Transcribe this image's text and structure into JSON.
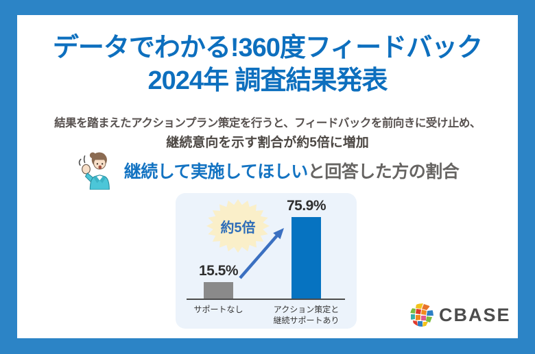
{
  "header": {
    "title_line1": "データでわかる!360度フィードバック",
    "title_line2": "2024年 調査結果発表",
    "subtitle_line1": "結果を踏まえたアクションプラン策定を行うと、フィードバックを前向きに受け止め、",
    "subtitle_highlight": "継続意向を示す割合が約5倍に増加"
  },
  "section_heading": {
    "blue_part": "継続して実施してほしい",
    "gray_part": "と回答した方の割合"
  },
  "chart_data": {
    "type": "bar",
    "categories": [
      "サポートなし",
      "アクション策定と\n継続サポートあり"
    ],
    "values": [
      15.5,
      75.9
    ],
    "value_labels": [
      "15.5%",
      "75.9%"
    ],
    "bar_colors": [
      "#8A8A8A",
      "#0673C1"
    ],
    "annotation": "約5倍",
    "ylim": [
      0,
      80
    ],
    "grid": false,
    "legend": false
  },
  "logo": {
    "text": "CBASE"
  },
  "colors": {
    "frame_blue": "#2C84C6",
    "title_blue": "#0D6FBE",
    "highlight_yellow": "#F4E23E",
    "panel_background": "#ECF3FB",
    "bar_blue": "#0673C1",
    "bar_gray": "#8A8A8A",
    "arrow_blue": "#3B70C1",
    "starburst_cream": "#FAEFC9"
  }
}
